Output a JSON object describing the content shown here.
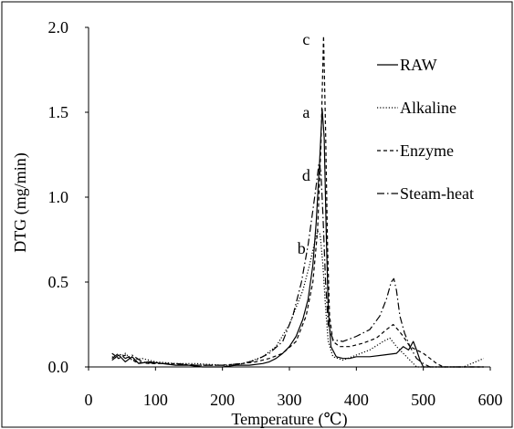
{
  "chart_data": {
    "type": "line",
    "xlabel": "Temperature (℃)",
    "ylabel": "DTG (mg/min)",
    "xlim": [
      0,
      600
    ],
    "ylim": [
      0,
      2.0
    ],
    "x_ticks": [
      "0",
      "100",
      "200",
      "300",
      "400",
      "500",
      "600"
    ],
    "y_ticks": [
      "0.0",
      "0.5",
      "1.0",
      "1.5",
      "2.0"
    ],
    "grid": false,
    "legend": {
      "position": "top-right"
    },
    "series": [
      {
        "name": "RAW",
        "style": "solid",
        "color": "#000000",
        "points": [
          [
            35,
            0.04
          ],
          [
            45,
            0.07
          ],
          [
            55,
            0.03
          ],
          [
            65,
            0.06
          ],
          [
            75,
            0.02
          ],
          [
            90,
            0.03
          ],
          [
            110,
            0.02
          ],
          [
            130,
            0.01
          ],
          [
            150,
            0.01
          ],
          [
            170,
            0.0
          ],
          [
            200,
            0.0
          ],
          [
            220,
            0.01
          ],
          [
            240,
            0.01
          ],
          [
            260,
            0.02
          ],
          [
            270,
            0.03
          ],
          [
            280,
            0.05
          ],
          [
            290,
            0.08
          ],
          [
            300,
            0.12
          ],
          [
            310,
            0.18
          ],
          [
            320,
            0.28
          ],
          [
            328,
            0.4
          ],
          [
            335,
            0.6
          ],
          [
            340,
            0.85
          ],
          [
            345,
            1.2
          ],
          [
            349,
            1.52
          ],
          [
            352,
            1.35
          ],
          [
            355,
            0.8
          ],
          [
            358,
            0.35
          ],
          [
            362,
            0.12
          ],
          [
            370,
            0.06
          ],
          [
            380,
            0.05
          ],
          [
            390,
            0.05
          ],
          [
            400,
            0.06
          ],
          [
            420,
            0.06
          ],
          [
            440,
            0.07
          ],
          [
            460,
            0.08
          ],
          [
            470,
            0.12
          ],
          [
            478,
            0.1
          ],
          [
            485,
            0.15
          ],
          [
            490,
            0.1
          ],
          [
            495,
            0.04
          ],
          [
            500,
            0.0
          ],
          [
            540,
            0.0
          ],
          [
            590,
            0.0
          ]
        ]
      },
      {
        "name": "Alkaline",
        "style": "dotted",
        "color": "#000000",
        "points": [
          [
            35,
            0.06
          ],
          [
            45,
            0.05
          ],
          [
            55,
            0.08
          ],
          [
            65,
            0.04
          ],
          [
            80,
            0.05
          ],
          [
            100,
            0.03
          ],
          [
            130,
            0.02
          ],
          [
            160,
            0.02
          ],
          [
            200,
            0.01
          ],
          [
            220,
            0.01
          ],
          [
            240,
            0.03
          ],
          [
            260,
            0.06
          ],
          [
            280,
            0.12
          ],
          [
            300,
            0.25
          ],
          [
            310,
            0.35
          ],
          [
            320,
            0.45
          ],
          [
            330,
            0.6
          ],
          [
            337,
            0.72
          ],
          [
            342,
            0.8
          ],
          [
            346,
            0.78
          ],
          [
            350,
            0.6
          ],
          [
            354,
            0.35
          ],
          [
            358,
            0.15
          ],
          [
            365,
            0.06
          ],
          [
            380,
            0.04
          ],
          [
            400,
            0.07
          ],
          [
            420,
            0.1
          ],
          [
            440,
            0.15
          ],
          [
            450,
            0.17
          ],
          [
            460,
            0.12
          ],
          [
            470,
            0.08
          ],
          [
            480,
            0.04
          ],
          [
            490,
            0.0
          ],
          [
            520,
            0.0
          ],
          [
            560,
            0.0
          ],
          [
            590,
            0.05
          ]
        ]
      },
      {
        "name": "Enzyme",
        "style": "dashed",
        "color": "#000000",
        "points": [
          [
            35,
            0.08
          ],
          [
            45,
            0.05
          ],
          [
            55,
            0.07
          ],
          [
            70,
            0.03
          ],
          [
            90,
            0.02
          ],
          [
            120,
            0.02
          ],
          [
            160,
            0.01
          ],
          [
            200,
            0.01
          ],
          [
            230,
            0.02
          ],
          [
            250,
            0.03
          ],
          [
            270,
            0.05
          ],
          [
            290,
            0.08
          ],
          [
            310,
            0.15
          ],
          [
            325,
            0.3
          ],
          [
            335,
            0.5
          ],
          [
            342,
            0.8
          ],
          [
            347,
            1.3
          ],
          [
            351,
            1.95
          ],
          [
            354,
            1.4
          ],
          [
            357,
            0.7
          ],
          [
            360,
            0.3
          ],
          [
            365,
            0.15
          ],
          [
            375,
            0.12
          ],
          [
            390,
            0.12
          ],
          [
            410,
            0.14
          ],
          [
            430,
            0.17
          ],
          [
            445,
            0.22
          ],
          [
            455,
            0.25
          ],
          [
            462,
            0.22
          ],
          [
            470,
            0.18
          ],
          [
            480,
            0.12
          ],
          [
            490,
            0.1
          ],
          [
            500,
            0.08
          ],
          [
            510,
            0.05
          ],
          [
            520,
            0.02
          ],
          [
            530,
            0.0
          ],
          [
            560,
            0.0
          ],
          [
            590,
            0.0
          ]
        ]
      },
      {
        "name": "Steam-heat",
        "style": "dashdot",
        "color": "#000000",
        "points": [
          [
            35,
            0.05
          ],
          [
            45,
            0.08
          ],
          [
            55,
            0.05
          ],
          [
            65,
            0.07
          ],
          [
            80,
            0.03
          ],
          [
            100,
            0.02
          ],
          [
            130,
            0.02
          ],
          [
            160,
            0.01
          ],
          [
            200,
            0.01
          ],
          [
            230,
            0.02
          ],
          [
            250,
            0.04
          ],
          [
            270,
            0.08
          ],
          [
            290,
            0.15
          ],
          [
            305,
            0.3
          ],
          [
            318,
            0.5
          ],
          [
            328,
            0.72
          ],
          [
            336,
            0.95
          ],
          [
            341,
            1.1
          ],
          [
            344,
            1.2
          ],
          [
            347,
            1.15
          ],
          [
            350,
            0.9
          ],
          [
            354,
            0.5
          ],
          [
            358,
            0.25
          ],
          [
            365,
            0.16
          ],
          [
            380,
            0.15
          ],
          [
            400,
            0.18
          ],
          [
            420,
            0.22
          ],
          [
            435,
            0.3
          ],
          [
            445,
            0.4
          ],
          [
            452,
            0.5
          ],
          [
            456,
            0.52
          ],
          [
            460,
            0.45
          ],
          [
            465,
            0.3
          ],
          [
            472,
            0.2
          ],
          [
            480,
            0.12
          ],
          [
            490,
            0.05
          ],
          [
            500,
            0.02
          ],
          [
            510,
            0.0
          ],
          [
            560,
            0.0
          ],
          [
            590,
            0.0
          ]
        ]
      }
    ],
    "annotations": [
      {
        "text": "c",
        "x": 325,
        "y": 1.93
      },
      {
        "text": "a",
        "x": 325,
        "y": 1.5
      },
      {
        "text": "d",
        "x": 325,
        "y": 1.13
      },
      {
        "text": "b",
        "x": 318,
        "y": 0.7
      }
    ]
  }
}
